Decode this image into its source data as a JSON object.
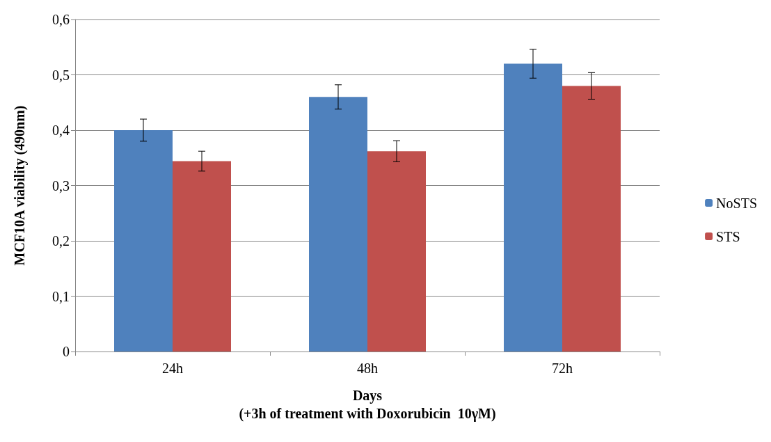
{
  "chart_data": {
    "type": "bar",
    "xlabel": "Days\n(+3h of treatment with Doxorubicin  10γM)",
    "ylabel": "MCF10A viability (490nm)",
    "categories": [
      "24h",
      "48h",
      "72h"
    ],
    "series": [
      {
        "name": "NoSTS",
        "color": "#4f81bd",
        "values": [
          0.4,
          0.46,
          0.52
        ],
        "errors": [
          0.02,
          0.022,
          0.026
        ]
      },
      {
        "name": "STS",
        "color": "#c0504d",
        "values": [
          0.344,
          0.362,
          0.48
        ],
        "errors": [
          0.018,
          0.019,
          0.024
        ]
      }
    ],
    "ylim": [
      0,
      0.6
    ],
    "yticks": [
      0,
      {
        "value": 0.1,
        "label": "0,1"
      },
      {
        "value": 0.2,
        "label": "0,2"
      },
      {
        "value": 0.3,
        "label": "0,3"
      },
      {
        "value": 0.4,
        "label": "0,4"
      },
      {
        "value": 0.5,
        "label": "0,5"
      },
      {
        "value": 0.6,
        "label": "0,6"
      }
    ],
    "grid": "y",
    "legend": "right"
  }
}
